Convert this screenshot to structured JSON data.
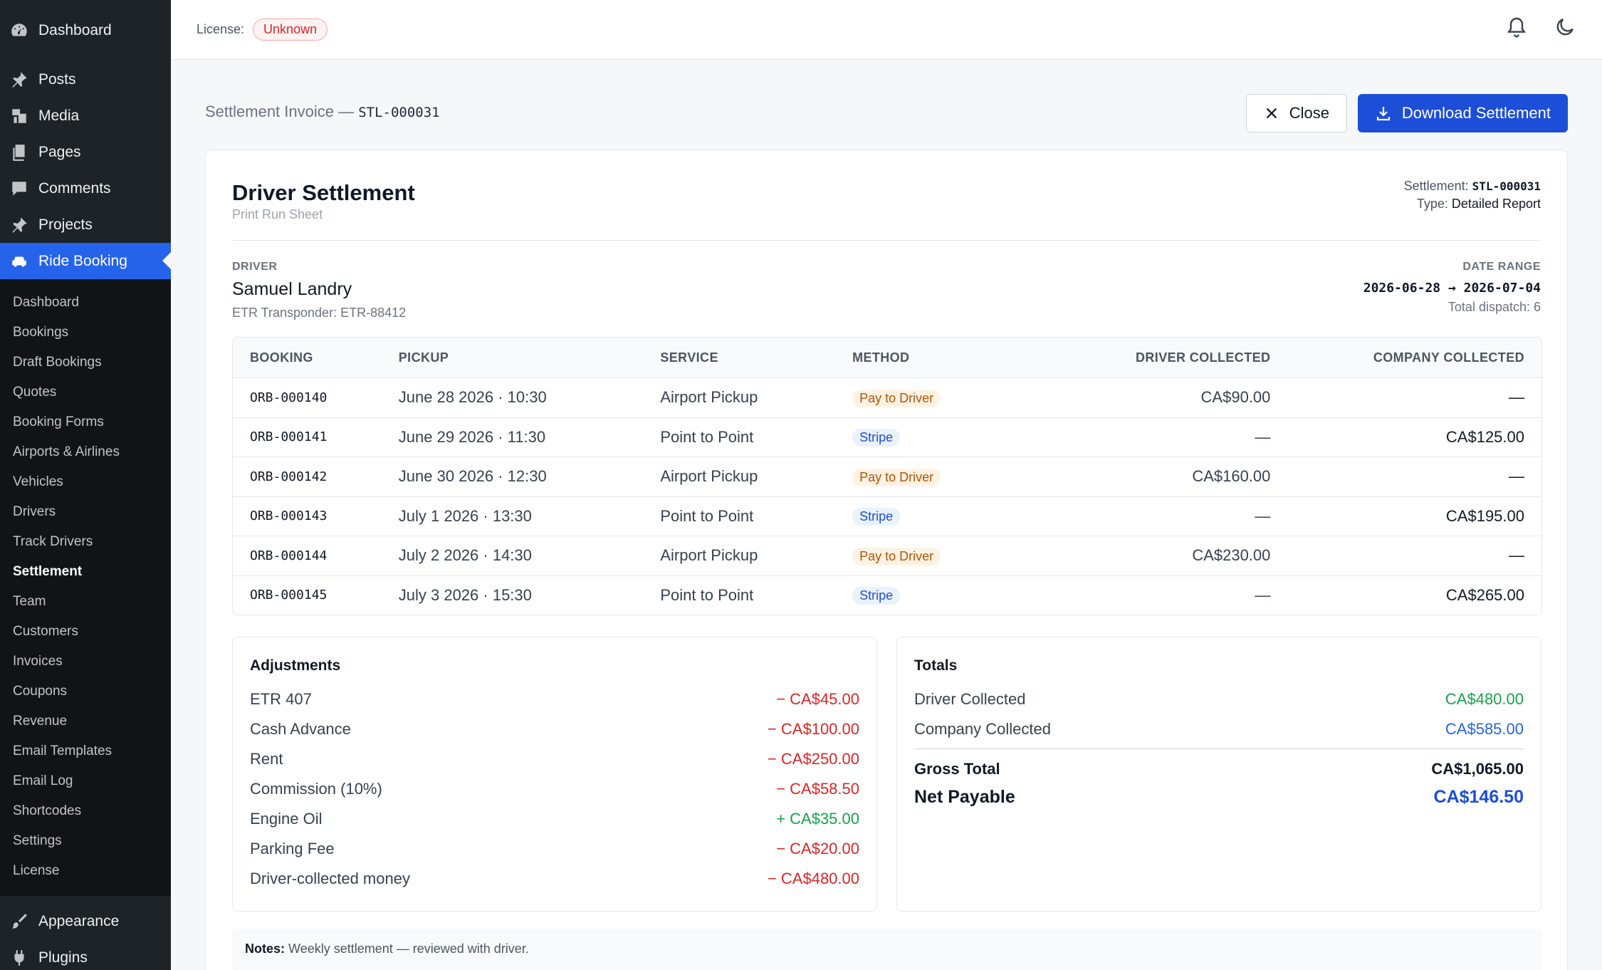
{
  "sidebar": {
    "top": [
      {
        "label": "Dashboard",
        "icon": "dashboard-icon"
      }
    ],
    "main": [
      {
        "label": "Posts",
        "icon": "pin-icon"
      },
      {
        "label": "Media",
        "icon": "media-icon"
      },
      {
        "label": "Pages",
        "icon": "pages-icon"
      },
      {
        "label": "Comments",
        "icon": "comment-icon"
      },
      {
        "label": "Projects",
        "icon": "pin-icon"
      },
      {
        "label": "Ride Booking",
        "icon": "car-icon"
      }
    ],
    "sub": [
      "Dashboard",
      "Bookings",
      "Draft Bookings",
      "Quotes",
      "Booking Forms",
      "Airports & Airlines",
      "Vehicles",
      "Drivers",
      "Track Drivers",
      "Settlement",
      "Team",
      "Customers",
      "Invoices",
      "Coupons",
      "Revenue",
      "Email Templates",
      "Email Log",
      "Shortcodes",
      "Settings",
      "License"
    ],
    "bottom": [
      {
        "label": "Appearance",
        "icon": "brush-icon"
      },
      {
        "label": "Plugins",
        "icon": "plugin-icon"
      }
    ]
  },
  "topbar": {
    "license_label": "License:",
    "license_status": "Unknown"
  },
  "header": {
    "breadcrumb": "Settlement Invoice —",
    "code": "STL-000031",
    "close_label": "Close",
    "download_label": "Download Settlement"
  },
  "doc": {
    "title": "Driver Settlement",
    "subtitle": "Print Run Sheet",
    "settlement_label": "Settlement:",
    "settlement_code": "STL-000031",
    "type_label": "Type:",
    "type_value": "Detailed Report",
    "driver_label": "DRIVER",
    "driver_name": "Samuel Landry",
    "driver_sub": "ETR Transponder: ETR-88412",
    "range_label": "DATE RANGE",
    "range_value": "2026-06-28 → 2026-07-04",
    "range_sub": "Total dispatch: 6"
  },
  "table": {
    "headers": [
      "BOOKING",
      "PICKUP",
      "SERVICE",
      "METHOD",
      "DRIVER COLLECTED",
      "COMPANY COLLECTED"
    ],
    "rows": [
      {
        "booking": "ORB-000140",
        "pickup": "June 28 2026 · 10:30",
        "service": "Airport Pickup",
        "method": "Pay to Driver",
        "driver": "CA$90.00",
        "company": "—"
      },
      {
        "booking": "ORB-000141",
        "pickup": "June 29 2026 · 11:30",
        "service": "Point to Point",
        "method": "Stripe",
        "driver": "—",
        "company": "CA$125.00"
      },
      {
        "booking": "ORB-000142",
        "pickup": "June 30 2026 · 12:30",
        "service": "Airport Pickup",
        "method": "Pay to Driver",
        "driver": "CA$160.00",
        "company": "—"
      },
      {
        "booking": "ORB-000143",
        "pickup": "July 1 2026 · 13:30",
        "service": "Point to Point",
        "method": "Stripe",
        "driver": "—",
        "company": "CA$195.00"
      },
      {
        "booking": "ORB-000144",
        "pickup": "July 2 2026 · 14:30",
        "service": "Airport Pickup",
        "method": "Pay to Driver",
        "driver": "CA$230.00",
        "company": "—"
      },
      {
        "booking": "ORB-000145",
        "pickup": "July 3 2026 · 15:30",
        "service": "Point to Point",
        "method": "Stripe",
        "driver": "—",
        "company": "CA$265.00"
      }
    ]
  },
  "adjustments": {
    "title": "Adjustments",
    "items": [
      {
        "label": "ETR 407",
        "amount": "− CA$45.00",
        "sign": "neg"
      },
      {
        "label": "Cash Advance",
        "amount": "− CA$100.00",
        "sign": "neg"
      },
      {
        "label": "Rent",
        "amount": "− CA$250.00",
        "sign": "neg"
      },
      {
        "label": "Commission (10%)",
        "amount": "− CA$58.50",
        "sign": "neg"
      },
      {
        "label": "Engine Oil",
        "amount": "+ CA$35.00",
        "sign": "pos"
      },
      {
        "label": "Parking Fee",
        "amount": "− CA$20.00",
        "sign": "neg"
      },
      {
        "label": "Driver-collected money",
        "amount": "− CA$480.00",
        "sign": "neg"
      }
    ]
  },
  "totals": {
    "title": "Totals",
    "driver_label": "Driver Collected",
    "driver_value": "CA$480.00",
    "company_label": "Company Collected",
    "company_value": "CA$585.00",
    "gross_label": "Gross Total",
    "gross_value": "CA$1,065.00",
    "net_label": "Net Payable",
    "net_value": "CA$146.50"
  },
  "notes": {
    "label": "Notes:",
    "text": "Weekly settlement — reviewed with driver."
  },
  "colors": {
    "accent": "#2563eb",
    "sidebar": "#1d2327",
    "negative": "#dc2626",
    "positive": "#16a34a"
  }
}
